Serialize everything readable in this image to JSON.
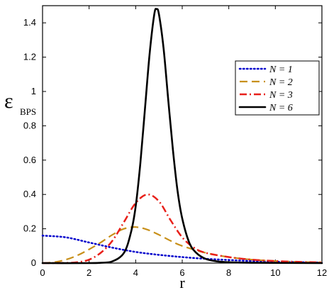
{
  "chart_data": {
    "type": "line",
    "xlabel": "r",
    "ylabel": "ε",
    "ylabel_sub": "BPS",
    "xlim": [
      0,
      12
    ],
    "ylim": [
      0,
      1.5
    ],
    "xticks": [
      0,
      2,
      4,
      6,
      8,
      10,
      12
    ],
    "yticks": [
      0,
      0.2,
      0.4,
      0.6,
      0.8,
      1,
      1.2,
      1.4
    ],
    "ytick_labels": [
      "0",
      "0.2",
      "0.4",
      "0.6",
      "0.8",
      "1",
      "1.2",
      "1.4"
    ],
    "grid": false,
    "legend_position": "right",
    "series": [
      {
        "name": "N = 1",
        "color": "#0000cc",
        "dash": "dotted",
        "x": [
          0,
          1,
          2,
          3,
          4,
          5,
          6,
          7,
          8,
          9,
          10,
          11,
          12
        ],
        "y": [
          0.16,
          0.15,
          0.12,
          0.09,
          0.065,
          0.048,
          0.035,
          0.025,
          0.018,
          0.012,
          0.008,
          0.005,
          0.003
        ]
      },
      {
        "name": "N = 2",
        "color": "#c8901a",
        "dash": "dashed",
        "x": [
          0,
          0.5,
          1,
          1.5,
          2,
          2.5,
          3,
          3.5,
          4,
          4.5,
          5,
          5.5,
          6,
          7,
          8,
          9,
          10,
          11,
          12
        ],
        "y": [
          0,
          0.005,
          0.02,
          0.045,
          0.08,
          0.12,
          0.165,
          0.2,
          0.21,
          0.195,
          0.165,
          0.13,
          0.1,
          0.06,
          0.035,
          0.02,
          0.012,
          0.007,
          0.004
        ]
      },
      {
        "name": "N = 3",
        "color": "#e8201a",
        "dash": "dashdot",
        "x": [
          0,
          1,
          1.5,
          2,
          2.5,
          3,
          3.5,
          4,
          4.5,
          5,
          5.5,
          6,
          6.5,
          7,
          8,
          9,
          10,
          11,
          12
        ],
        "y": [
          0,
          0.001,
          0.005,
          0.02,
          0.06,
          0.13,
          0.24,
          0.35,
          0.4,
          0.36,
          0.25,
          0.15,
          0.09,
          0.06,
          0.035,
          0.02,
          0.012,
          0.007,
          0.004
        ]
      },
      {
        "name": "N = 6",
        "color": "#000000",
        "dash": "solid",
        "x": [
          0,
          2,
          2.5,
          3,
          3.5,
          3.8,
          4,
          4.2,
          4.4,
          4.6,
          4.8,
          4.9,
          5,
          5.2,
          5.4,
          5.6,
          5.8,
          6,
          6.3,
          6.6,
          7,
          7.5,
          8,
          9,
          10,
          12
        ],
        "y": [
          0,
          0,
          0.002,
          0.01,
          0.06,
          0.18,
          0.33,
          0.58,
          0.9,
          1.22,
          1.45,
          1.48,
          1.45,
          1.25,
          0.95,
          0.66,
          0.42,
          0.26,
          0.12,
          0.06,
          0.025,
          0.01,
          0.005,
          0.002,
          0.001,
          0
        ]
      }
    ]
  }
}
